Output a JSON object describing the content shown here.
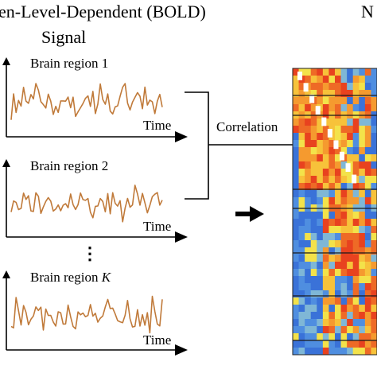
{
  "title_line1": "en-Level-Dependent (BOLD)",
  "title_line2": "Signal",
  "top_right_fragment": "N",
  "regions": [
    {
      "label": "Brain region 1",
      "axis_label": "Time"
    },
    {
      "label": "Brain region 2",
      "axis_label": "Time"
    },
    {
      "label_prefix": "Brain region ",
      "label_italic": "K",
      "axis_label": "Time"
    }
  ],
  "ellipsis": "⋮",
  "correlation_label": "Correlation",
  "colors": {
    "signal": "#c07a3a",
    "axis": "#000000",
    "heatmap_low": "#3a72d8",
    "heatmap_mid": "#f2d23a",
    "heatmap_high": "#ee4a22"
  }
}
